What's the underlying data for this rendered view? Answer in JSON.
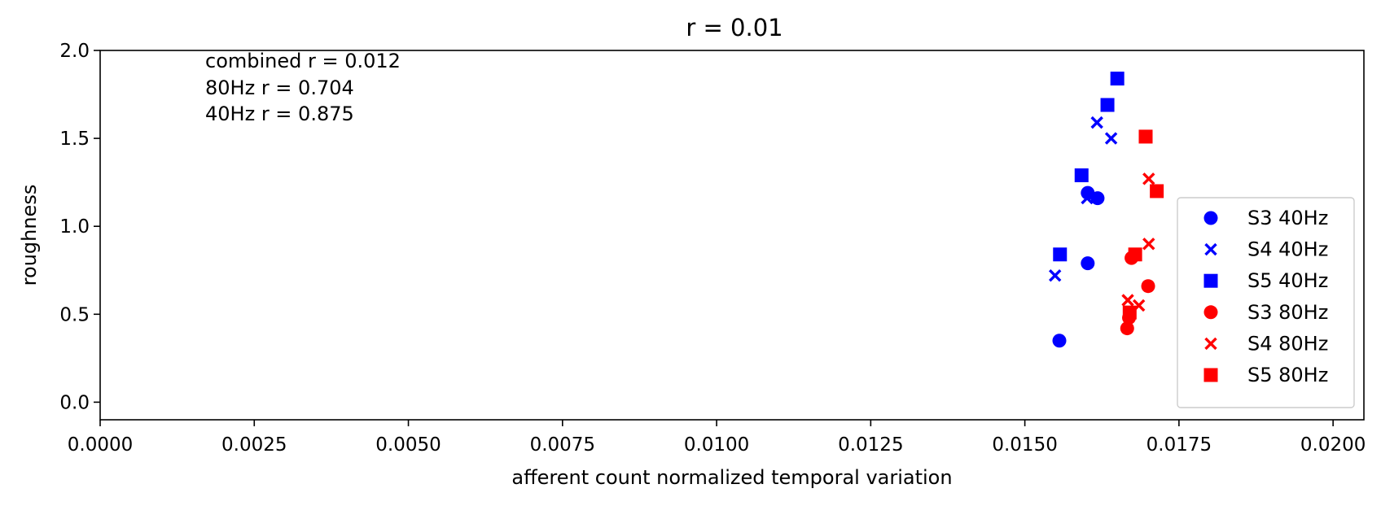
{
  "chart_data": {
    "type": "scatter",
    "title": "r = 0.01",
    "xlabel": "afferent count normalized temporal variation",
    "ylabel": "roughness",
    "xlim": [
      0,
      0.0205
    ],
    "ylim": [
      -0.1,
      2.0
    ],
    "xticks": [
      0,
      0.0025,
      0.005,
      0.0075,
      0.01,
      0.0125,
      0.015,
      0.0175,
      0.02
    ],
    "xtick_labels": [
      "0.0000",
      "0.0025",
      "0.0050",
      "0.0075",
      "0.0100",
      "0.0125",
      "0.0150",
      "0.0175",
      "0.0200"
    ],
    "yticks": [
      0,
      0.5,
      1.0,
      1.5,
      2.0
    ],
    "ytick_labels": [
      "0.0",
      "0.5",
      "1.0",
      "1.5",
      "2.0"
    ],
    "grid": false,
    "legend_position": "lower-right",
    "annotations": [
      "combined r = 0.012",
      "80Hz r = 0.704",
      "40Hz r = 0.875"
    ],
    "series": [
      {
        "name": "S3 40Hz",
        "color": "#0000ff",
        "marker": "circle",
        "x": [
          0.01556,
          0.01602,
          0.01602,
          0.01618
        ],
        "y": [
          0.35,
          0.79,
          1.19,
          1.16
        ]
      },
      {
        "name": "S4 40Hz",
        "color": "#0000ff",
        "marker": "x",
        "x": [
          0.01549,
          0.01601,
          0.01617,
          0.0164
        ],
        "y": [
          0.72,
          1.16,
          1.59,
          1.5
        ]
      },
      {
        "name": "S5 40Hz",
        "color": "#0000ff",
        "marker": "square",
        "x": [
          0.01557,
          0.01592,
          0.01634,
          0.0165
        ],
        "y": [
          0.84,
          1.29,
          1.69,
          1.84
        ]
      },
      {
        "name": "S3 80Hz",
        "color": "#ff0000",
        "marker": "circle",
        "x": [
          0.01666,
          0.01669,
          0.01673,
          0.017
        ],
        "y": [
          0.42,
          0.48,
          0.82,
          0.66
        ]
      },
      {
        "name": "S4 80Hz",
        "color": "#ff0000",
        "marker": "x",
        "x": [
          0.01667,
          0.01685,
          0.01701,
          0.01701
        ],
        "y": [
          0.58,
          0.55,
          0.9,
          1.27
        ]
      },
      {
        "name": "S5 80Hz",
        "color": "#ff0000",
        "marker": "square",
        "x": [
          0.0167,
          0.01679,
          0.01696,
          0.01714
        ],
        "y": [
          0.51,
          0.84,
          1.51,
          1.2
        ]
      }
    ]
  }
}
